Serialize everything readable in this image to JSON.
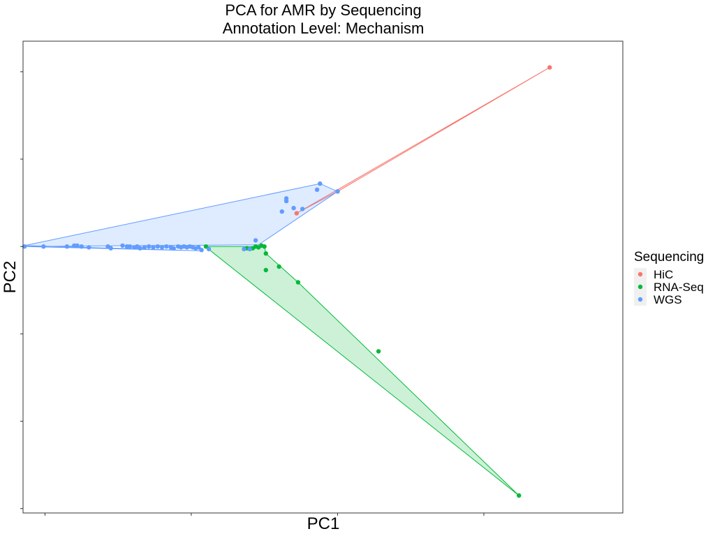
{
  "chart_data": {
    "type": "scatter",
    "title": "PCA for AMR by Sequencing",
    "subtitle": "Annotation Level: Mechanism",
    "xlabel": "PC1",
    "ylabel": "PC2",
    "xlim": [
      -0.15,
      3.95
    ],
    "ylim": [
      -3.05,
      2.35
    ],
    "xticks": [
      0,
      1,
      2,
      3
    ],
    "yticks": [
      -3,
      -2,
      -1,
      0,
      1,
      2
    ],
    "grid": false,
    "hull_polygons": true,
    "legend": {
      "title": "Sequencing",
      "position": "right"
    },
    "series": [
      {
        "name": "HiC",
        "color": "#F8766D",
        "points": [
          [
            3.45,
            2.05
          ],
          [
            2.0,
            0.63
          ],
          [
            1.72,
            0.38
          ]
        ],
        "hull": [
          [
            3.45,
            2.05
          ],
          [
            2.0,
            0.63
          ],
          [
            1.72,
            0.38
          ]
        ]
      },
      {
        "name": "RNA-Seq",
        "color": "#00BA38",
        "points": [
          [
            1.1,
            0.0
          ],
          [
            1.44,
            0.0
          ],
          [
            1.48,
            0.01
          ],
          [
            1.5,
            0.0
          ],
          [
            1.46,
            -0.01
          ],
          [
            1.42,
            -0.02
          ],
          [
            1.38,
            -0.02
          ],
          [
            1.51,
            -0.08
          ],
          [
            1.51,
            -0.27
          ],
          [
            1.6,
            -0.23
          ],
          [
            1.73,
            -0.41
          ],
          [
            2.28,
            -1.2
          ],
          [
            3.24,
            -2.85
          ]
        ],
        "hull": [
          [
            1.1,
            0.0
          ],
          [
            1.5,
            0.0
          ],
          [
            1.51,
            -0.08
          ],
          [
            1.73,
            -0.41
          ],
          [
            3.24,
            -2.85
          ],
          [
            1.14,
            -0.06
          ]
        ]
      },
      {
        "name": "WGS",
        "color": "#619CFF",
        "points": [
          [
            -0.14,
            0.0
          ],
          [
            -0.01,
            0.0
          ],
          [
            0.15,
            0.0
          ],
          [
            0.2,
            0.01
          ],
          [
            0.22,
            0.01
          ],
          [
            0.25,
            0.0
          ],
          [
            0.3,
            -0.01
          ],
          [
            0.43,
            0.0
          ],
          [
            0.45,
            -0.02
          ],
          [
            0.53,
            0.01
          ],
          [
            0.56,
            0.0
          ],
          [
            0.58,
            0.0
          ],
          [
            0.61,
            -0.01
          ],
          [
            0.63,
            0.0
          ],
          [
            0.65,
            -0.02
          ],
          [
            0.68,
            -0.01
          ],
          [
            0.71,
            0.0
          ],
          [
            0.74,
            -0.01
          ],
          [
            0.77,
            0.0
          ],
          [
            0.8,
            -0.01
          ],
          [
            0.83,
            0.0
          ],
          [
            0.86,
            -0.01
          ],
          [
            0.88,
            -0.02
          ],
          [
            0.91,
            0.0
          ],
          [
            0.93,
            -0.01
          ],
          [
            0.95,
            0.0
          ],
          [
            0.97,
            -0.01
          ],
          [
            0.99,
            0.0
          ],
          [
            1.01,
            -0.01
          ],
          [
            1.03,
            -0.02
          ],
          [
            1.05,
            -0.01
          ],
          [
            1.07,
            -0.04
          ],
          [
            1.12,
            -0.03
          ],
          [
            1.36,
            -0.03
          ],
          [
            1.4,
            -0.03
          ],
          [
            1.44,
            0.07
          ],
          [
            1.62,
            0.4
          ],
          [
            1.65,
            0.52
          ],
          [
            1.65,
            0.55
          ],
          [
            1.7,
            0.44
          ],
          [
            1.76,
            0.43
          ],
          [
            1.86,
            0.65
          ],
          [
            1.88,
            0.72
          ],
          [
            2.0,
            0.63
          ]
        ],
        "hull": [
          [
            -0.14,
            0.0
          ],
          [
            1.46,
            0.02
          ],
          [
            2.0,
            0.63
          ],
          [
            1.88,
            0.72
          ],
          [
            -0.14,
            0.01
          ],
          [
            1.07,
            -0.05
          ]
        ]
      }
    ]
  }
}
